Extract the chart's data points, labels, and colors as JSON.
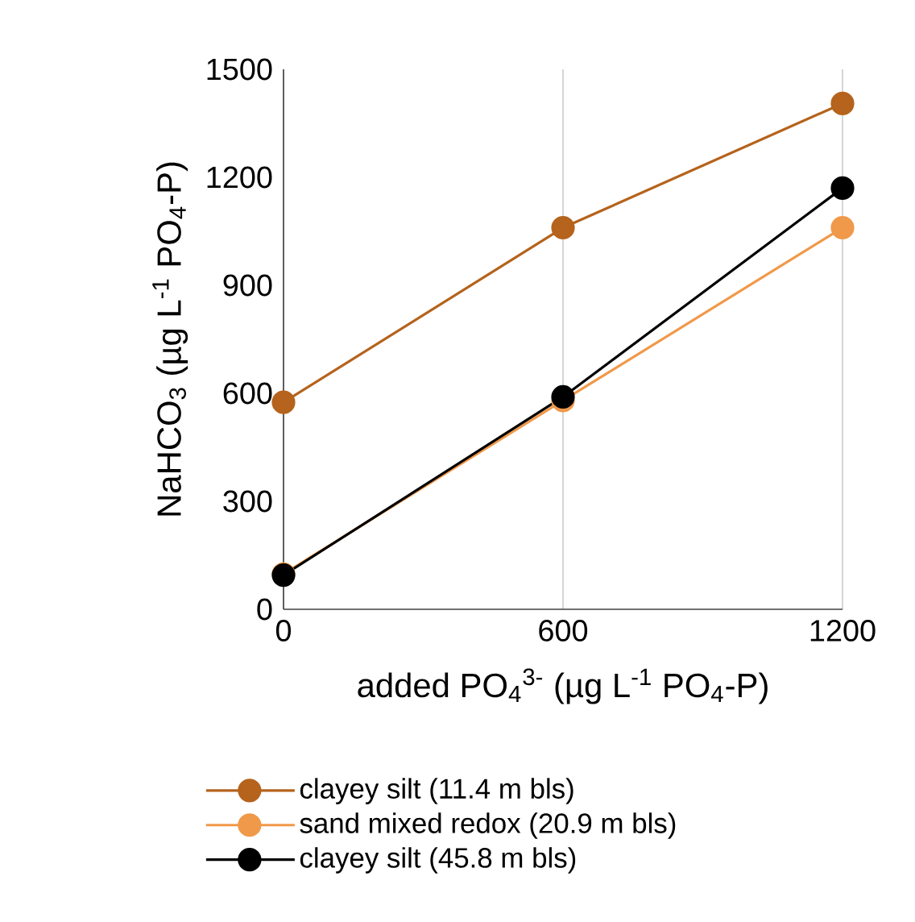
{
  "chart_data": {
    "type": "line",
    "xlabel": "added PO$_{4}$$^{3-}$ (µg L$^{-1}$ PO$_{4}$-P)",
    "ylabel": "NaHCO$_{3}$  (µg L$^{-1}$ PO$_{4}$-P)",
    "x": [
      0,
      600,
      1200
    ],
    "series": [
      {
        "name": "clayey silt (11.4 m bls)",
        "color": "#b5631d",
        "values": [
          575,
          1060,
          1405
        ]
      },
      {
        "name": "sand mixed redox (20.9 m bls)",
        "color": "#f0994a",
        "values": [
          98,
          580,
          1060
        ]
      },
      {
        "name": "clayey silt (45.8 m bls)",
        "color": "#000000",
        "values": [
          95,
          590,
          1170
        ]
      }
    ],
    "xlim": [
      0,
      1200
    ],
    "ylim": [
      0,
      1500
    ],
    "xticks": [
      0,
      600,
      1200
    ],
    "yticks": [
      0,
      300,
      600,
      900,
      1200,
      1500
    ],
    "grid": "x",
    "legend": "bottom",
    "marker": "circle",
    "line_style": "solid"
  }
}
